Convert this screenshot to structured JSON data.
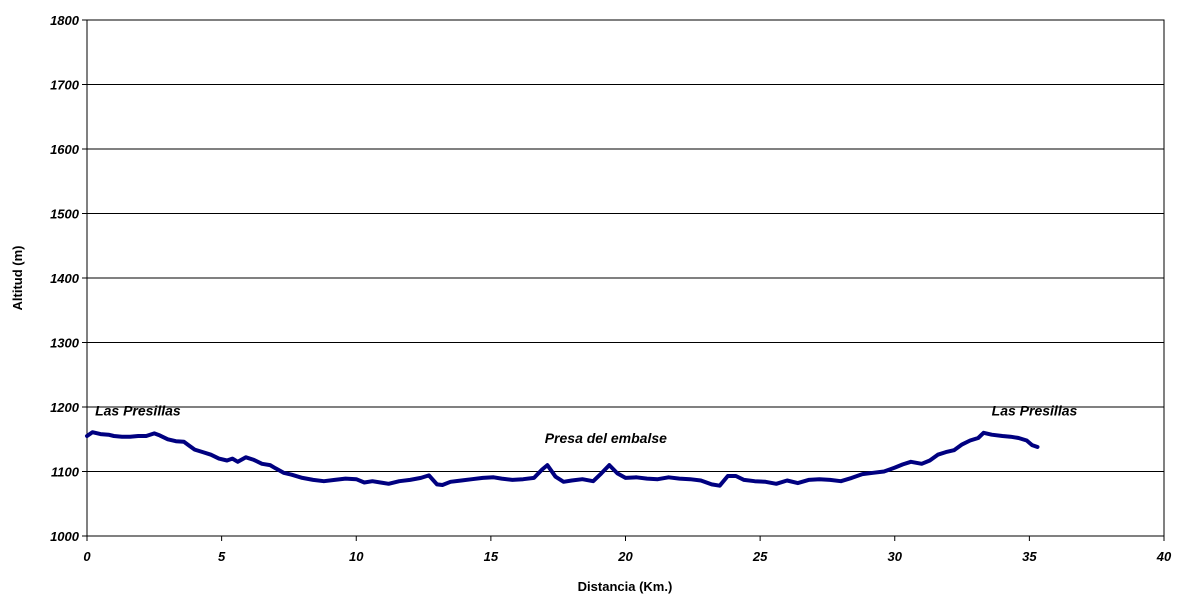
{
  "chart_data": {
    "type": "line",
    "title": "",
    "xlabel": "Distancia (Km.)",
    "ylabel": "Altitud (m)",
    "xlim": [
      0,
      40
    ],
    "ylim": [
      1000,
      1800
    ],
    "xticks": [
      0,
      5,
      10,
      15,
      20,
      25,
      30,
      35,
      40
    ],
    "yticks": [
      1000,
      1100,
      1200,
      1300,
      1400,
      1500,
      1600,
      1700,
      1800
    ],
    "grid": "horizontal",
    "legend": "none",
    "line_color": "#000080",
    "series": [
      {
        "x": [
          0,
          0.2,
          0.5,
          0.8,
          1.0,
          1.3,
          1.6,
          1.9,
          2.2,
          2.5,
          2.7,
          3.0,
          3.3,
          3.6,
          3.8,
          4.0,
          4.3,
          4.6,
          4.9,
          5.2,
          5.4,
          5.6,
          5.9,
          6.2,
          6.5,
          6.8,
          7.0,
          7.3,
          7.6,
          8.0,
          8.4,
          8.8,
          9.2,
          9.6,
          10.0,
          10.3,
          10.6,
          10.9,
          11.2,
          11.6,
          12.0,
          12.4,
          12.7,
          13.0,
          13.2,
          13.5,
          13.9,
          14.3,
          14.7,
          15.1,
          15.4,
          15.8,
          16.2,
          16.6,
          16.9,
          17.1,
          17.4,
          17.7,
          18.0,
          18.4,
          18.8,
          19.1,
          19.4,
          19.7,
          20.0,
          20.4,
          20.8,
          21.2,
          21.6,
          22.0,
          22.4,
          22.8,
          23.2,
          23.5,
          23.8,
          24.1,
          24.4,
          24.8,
          25.2,
          25.6,
          26.0,
          26.4,
          26.8,
          27.2,
          27.6,
          28.0,
          28.4,
          28.8,
          29.2,
          29.6,
          30.0,
          30.3,
          30.6,
          31.0,
          31.3,
          31.6,
          31.9,
          32.2,
          32.5,
          32.8,
          33.1,
          33.3,
          33.6,
          34.0,
          34.3,
          34.6,
          34.9,
          35.1,
          35.3
        ],
        "y": [
          1155,
          1161,
          1158,
          1157,
          1155,
          1154,
          1154,
          1155,
          1155,
          1159,
          1156,
          1150,
          1147,
          1146,
          1140,
          1134,
          1130,
          1126,
          1120,
          1117,
          1120,
          1115,
          1122,
          1118,
          1112,
          1110,
          1105,
          1098,
          1095,
          1090,
          1087,
          1085,
          1087,
          1089,
          1088,
          1083,
          1085,
          1083,
          1081,
          1085,
          1087,
          1090,
          1094,
          1080,
          1079,
          1084,
          1086,
          1088,
          1090,
          1091,
          1089,
          1087,
          1088,
          1090,
          1103,
          1110,
          1092,
          1084,
          1086,
          1088,
          1085,
          1097,
          1110,
          1097,
          1090,
          1091,
          1089,
          1088,
          1091,
          1089,
          1088,
          1086,
          1080,
          1078,
          1093,
          1093,
          1087,
          1085,
          1084,
          1081,
          1086,
          1082,
          1087,
          1088,
          1087,
          1085,
          1090,
          1096,
          1098,
          1100,
          1106,
          1111,
          1115,
          1112,
          1117,
          1126,
          1130,
          1133,
          1142,
          1148,
          1152,
          1160,
          1157,
          1155,
          1154,
          1152,
          1148,
          1141,
          1138
        ]
      }
    ],
    "annotations": [
      {
        "text": "Las Presillas",
        "x": 0.3,
        "y": 1187
      },
      {
        "text": "Presa del embalse",
        "x": 17,
        "y": 1144
      },
      {
        "text": "Las Presillas",
        "x": 33.6,
        "y": 1187
      }
    ]
  }
}
